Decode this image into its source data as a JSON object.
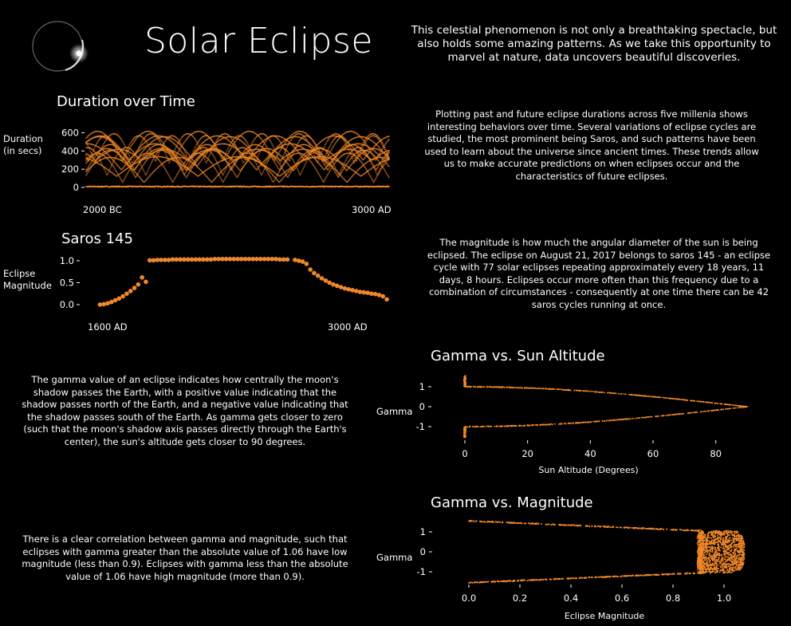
{
  "header": {
    "title": "Solar Eclipse",
    "intro": "This celestial phenomenon is not only a breathtaking spectacle, but also holds some amazing patterns. As we take this opportunity to marvel at nature, data uncovers beautiful discoveries.",
    "logo_icon": "eclipse-ring-icon"
  },
  "paragraphs": {
    "duration": "Plotting past and future eclipse durations across five millenia shows interesting behaviors over time. Several variations of eclipse cycles are studied, the most prominent being Saros, and such patterns have been used to learn about the universe since ancient times. These trends allow us to make accurate predictions on when eclipses occur and the characteristics of future eclipses.",
    "saros": "The magnitude is how much the angular diameter of the sun is being eclipsed. The eclipse on August 21, 2017 belongs to saros 145 - an eclipse cycle with 77 solar eclipses repeating approximately every 18 years, 11 days, 8 hours. Eclipses occur more often than this frequency due to a combination of circumstances - consequently at one time there can be 42 saros cycles running at once.",
    "gamma": "The gamma value of an eclipse indicates how centrally the moon's shadow passes the Earth, with a positive value indicating that the shadow passes north of the Earth, and a negative value indicating that the shadow passes south of the Earth. As gamma gets closer to zero (such that the moon's shadow axis passes directly through the Earth's center), the sun's altitude gets closer to 90 degrees.",
    "magnitude": "There is a clear correlation between gamma and magnitude, such that eclipses with gamma greater than the absolute value of 1.06 have low magnitude (less than 0.9). Eclipses with gamma less than the absolute value of 1.06 have high magnitude (more than 0.9)."
  },
  "colors": {
    "accent": "#f0882a",
    "background": "#000000",
    "text": "#ffffff"
  },
  "chart_data": [
    {
      "id": "duration",
      "type": "scatter",
      "title": "Duration over Time",
      "ylabel": "Duration (in secs)",
      "ylabel_lines": [
        "Duration",
        "(in secs)"
      ],
      "x_range_labels": [
        "2000 BC",
        "3000 AD"
      ],
      "xlim": [
        -2000,
        3000
      ],
      "ylim": [
        0,
        700
      ],
      "yticks": [
        0,
        200,
        400,
        600
      ],
      "point_count_note": "dense overlapping sinusoidal bands",
      "sample_points": [
        [
          -2000,
          120
        ],
        [
          -1500,
          640
        ],
        [
          -1000,
          300
        ],
        [
          -500,
          600
        ],
        [
          0,
          420
        ],
        [
          500,
          650
        ],
        [
          1000,
          380
        ],
        [
          1500,
          600
        ],
        [
          2000,
          250
        ],
        [
          2500,
          640
        ],
        [
          3000,
          480
        ]
      ]
    },
    {
      "id": "saros",
      "type": "scatter",
      "title": "Saros 145",
      "ylabel": "Eclipse Magnitude",
      "ylabel_lines": [
        "Eclipse",
        "Magnitude"
      ],
      "x_range_labels": [
        "1600 AD",
        "3000 AD"
      ],
      "xlim": [
        1600,
        3000
      ],
      "ylim": [
        0,
        1.0
      ],
      "yticks": [
        0.0,
        0.5,
        1.0
      ],
      "ytick_labels": [
        "0.0",
        "0.5",
        "1.0"
      ],
      "x": [
        1639,
        1657,
        1675,
        1693,
        1711,
        1729,
        1747,
        1765,
        1783,
        1801,
        1819,
        1837,
        1855,
        1873,
        1891,
        1909,
        1927,
        1945,
        1963,
        1981,
        1999,
        2017,
        2035,
        2053,
        2071,
        2089,
        2107,
        2125,
        2143,
        2161,
        2179,
        2197,
        2215,
        2233,
        2251,
        2269,
        2287,
        2305,
        2323,
        2341,
        2359,
        2377,
        2395,
        2413,
        2431,
        2449,
        2467,
        2485,
        2503,
        2521,
        2557,
        2575,
        2593,
        2611,
        2629,
        2647,
        2665,
        2683,
        2701,
        2719,
        2737,
        2755,
        2773,
        2791,
        2809,
        2827,
        2845,
        2863,
        2881,
        2899,
        2917,
        2935,
        2953,
        2971,
        2989
      ],
      "y": [
        0.0,
        0.01,
        0.03,
        0.06,
        0.1,
        0.14,
        0.19,
        0.25,
        0.31,
        0.38,
        0.46,
        0.62,
        0.52,
        1.01,
        1.01,
        1.02,
        1.02,
        1.02,
        1.02,
        1.03,
        1.03,
        1.03,
        1.03,
        1.03,
        1.03,
        1.03,
        1.03,
        1.03,
        1.03,
        1.03,
        1.04,
        1.04,
        1.04,
        1.04,
        1.04,
        1.04,
        1.04,
        1.04,
        1.04,
        1.04,
        1.04,
        1.04,
        1.04,
        1.04,
        1.04,
        1.04,
        1.04,
        1.03,
        1.03,
        1.03,
        1.02,
        1.0,
        0.98,
        0.93,
        0.8,
        0.72,
        0.66,
        0.6,
        0.55,
        0.5,
        0.46,
        0.43,
        0.4,
        0.37,
        0.35,
        0.33,
        0.31,
        0.29,
        0.28,
        0.27,
        0.25,
        0.24,
        0.22,
        0.19,
        0.12
      ]
    },
    {
      "id": "gamma-altitude",
      "type": "scatter",
      "title": "Gamma vs. Sun Altitude",
      "xlabel": "Sun Altitude (Degrees)",
      "ylabel": "Gamma",
      "xlim": [
        0,
        90
      ],
      "ylim": [
        -1.6,
        1.6
      ],
      "xticks": [
        0,
        20,
        40,
        60,
        80
      ],
      "yticks": [
        1,
        0,
        -1
      ],
      "ytick_labels": [
        "1",
        "0",
        "-1"
      ],
      "shape": "two converging bands from |gamma|~1.0 at 0 deg to gamma 0 at 90 deg, plus vertical cluster at altitude 0 spanning |gamma| 1.0-1.6",
      "upper_band": [
        [
          0,
          1.0
        ],
        [
          20,
          0.95
        ],
        [
          40,
          0.78
        ],
        [
          60,
          0.52
        ],
        [
          80,
          0.18
        ],
        [
          90,
          0.0
        ]
      ],
      "lower_band": [
        [
          0,
          -1.0
        ],
        [
          20,
          -0.95
        ],
        [
          40,
          -0.78
        ],
        [
          60,
          -0.52
        ],
        [
          80,
          -0.18
        ],
        [
          90,
          0.0
        ]
      ]
    },
    {
      "id": "gamma-magnitude",
      "type": "scatter",
      "title": "Gamma vs. Magnitude",
      "xlabel": "Eclipse Magnitude",
      "ylabel": "Gamma",
      "xlim": [
        0,
        1.1
      ],
      "ylim": [
        -1.6,
        1.6
      ],
      "xticks": [
        0.0,
        0.2,
        0.4,
        0.6,
        0.8,
        1.0
      ],
      "xtick_labels": [
        "0.0",
        "0.2",
        "0.4",
        "0.6",
        "0.8",
        "1.0"
      ],
      "yticks": [
        1,
        0,
        -1
      ],
      "ytick_labels": [
        "1",
        "0",
        "-1"
      ],
      "shape": "wedge: |gamma| from ~1.55 at magnitude 0 down to ~1.06 at magnitude 0.9; dense block for magnitude 0.9-1.08 spanning gamma -1 to 1",
      "upper_edge": [
        [
          0.0,
          1.55
        ],
        [
          0.9,
          1.06
        ]
      ],
      "lower_edge": [
        [
          0.0,
          -1.55
        ],
        [
          0.9,
          -1.06
        ]
      ],
      "dense_block": {
        "mag": [
          0.9,
          1.08
        ],
        "gamma": [
          -1.06,
          1.06
        ]
      }
    }
  ]
}
